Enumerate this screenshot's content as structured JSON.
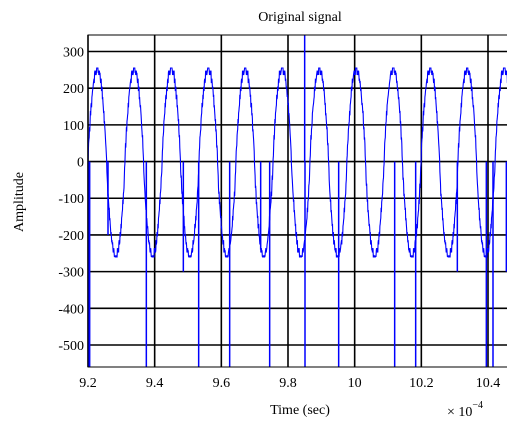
{
  "chart_data": {
    "type": "line",
    "title": "Original signal",
    "xlabel": "Time (sec)",
    "ylabel": "Amplitude",
    "x_multiplier": {
      "base": "× 10",
      "exponent": "−4"
    },
    "xlim": [
      9.2,
      10.46
    ],
    "ylim": [
      -560,
      345
    ],
    "xticks": [
      9.2,
      9.4,
      9.6,
      9.8,
      10,
      10.2,
      10.4
    ],
    "xtick_labels": [
      "9.2",
      "9.4",
      "9.6",
      "9.8",
      "10",
      "10.2",
      "10.4"
    ],
    "yticks": [
      300,
      200,
      100,
      0,
      -100,
      -200,
      -300,
      -400,
      -500
    ],
    "ytick_labels": [
      "300",
      "200",
      "100",
      "0",
      "-100",
      "-200",
      "-300",
      "-400",
      "-500"
    ],
    "grid": true,
    "series": [
      {
        "color": "#0000ff",
        "period": 0.111,
        "x_start": 9.2,
        "x_end": 10.46,
        "peak": 255,
        "trough": -260,
        "spikes": [
          {
            "x": 9.203,
            "y": -560
          },
          {
            "x": 9.205,
            "y": -560
          },
          {
            "x": 9.26,
            "y": -200
          },
          {
            "x": 9.375,
            "y": -560
          },
          {
            "x": 9.486,
            "y": -300
          },
          {
            "x": 9.532,
            "y": -560
          },
          {
            "x": 9.625,
            "y": -560
          },
          {
            "x": 9.718,
            "y": -240
          },
          {
            "x": 9.745,
            "y": -560
          },
          {
            "x": 9.85,
            "y": 345
          },
          {
            "x": 9.851,
            "y": -560
          },
          {
            "x": 9.952,
            "y": -560
          },
          {
            "x": 10.12,
            "y": -560
          },
          {
            "x": 10.183,
            "y": -560
          },
          {
            "x": 10.308,
            "y": -300
          },
          {
            "x": 10.395,
            "y": -560
          },
          {
            "x": 10.415,
            "y": -560
          },
          {
            "x": 10.455,
            "y": -300
          }
        ]
      }
    ]
  }
}
